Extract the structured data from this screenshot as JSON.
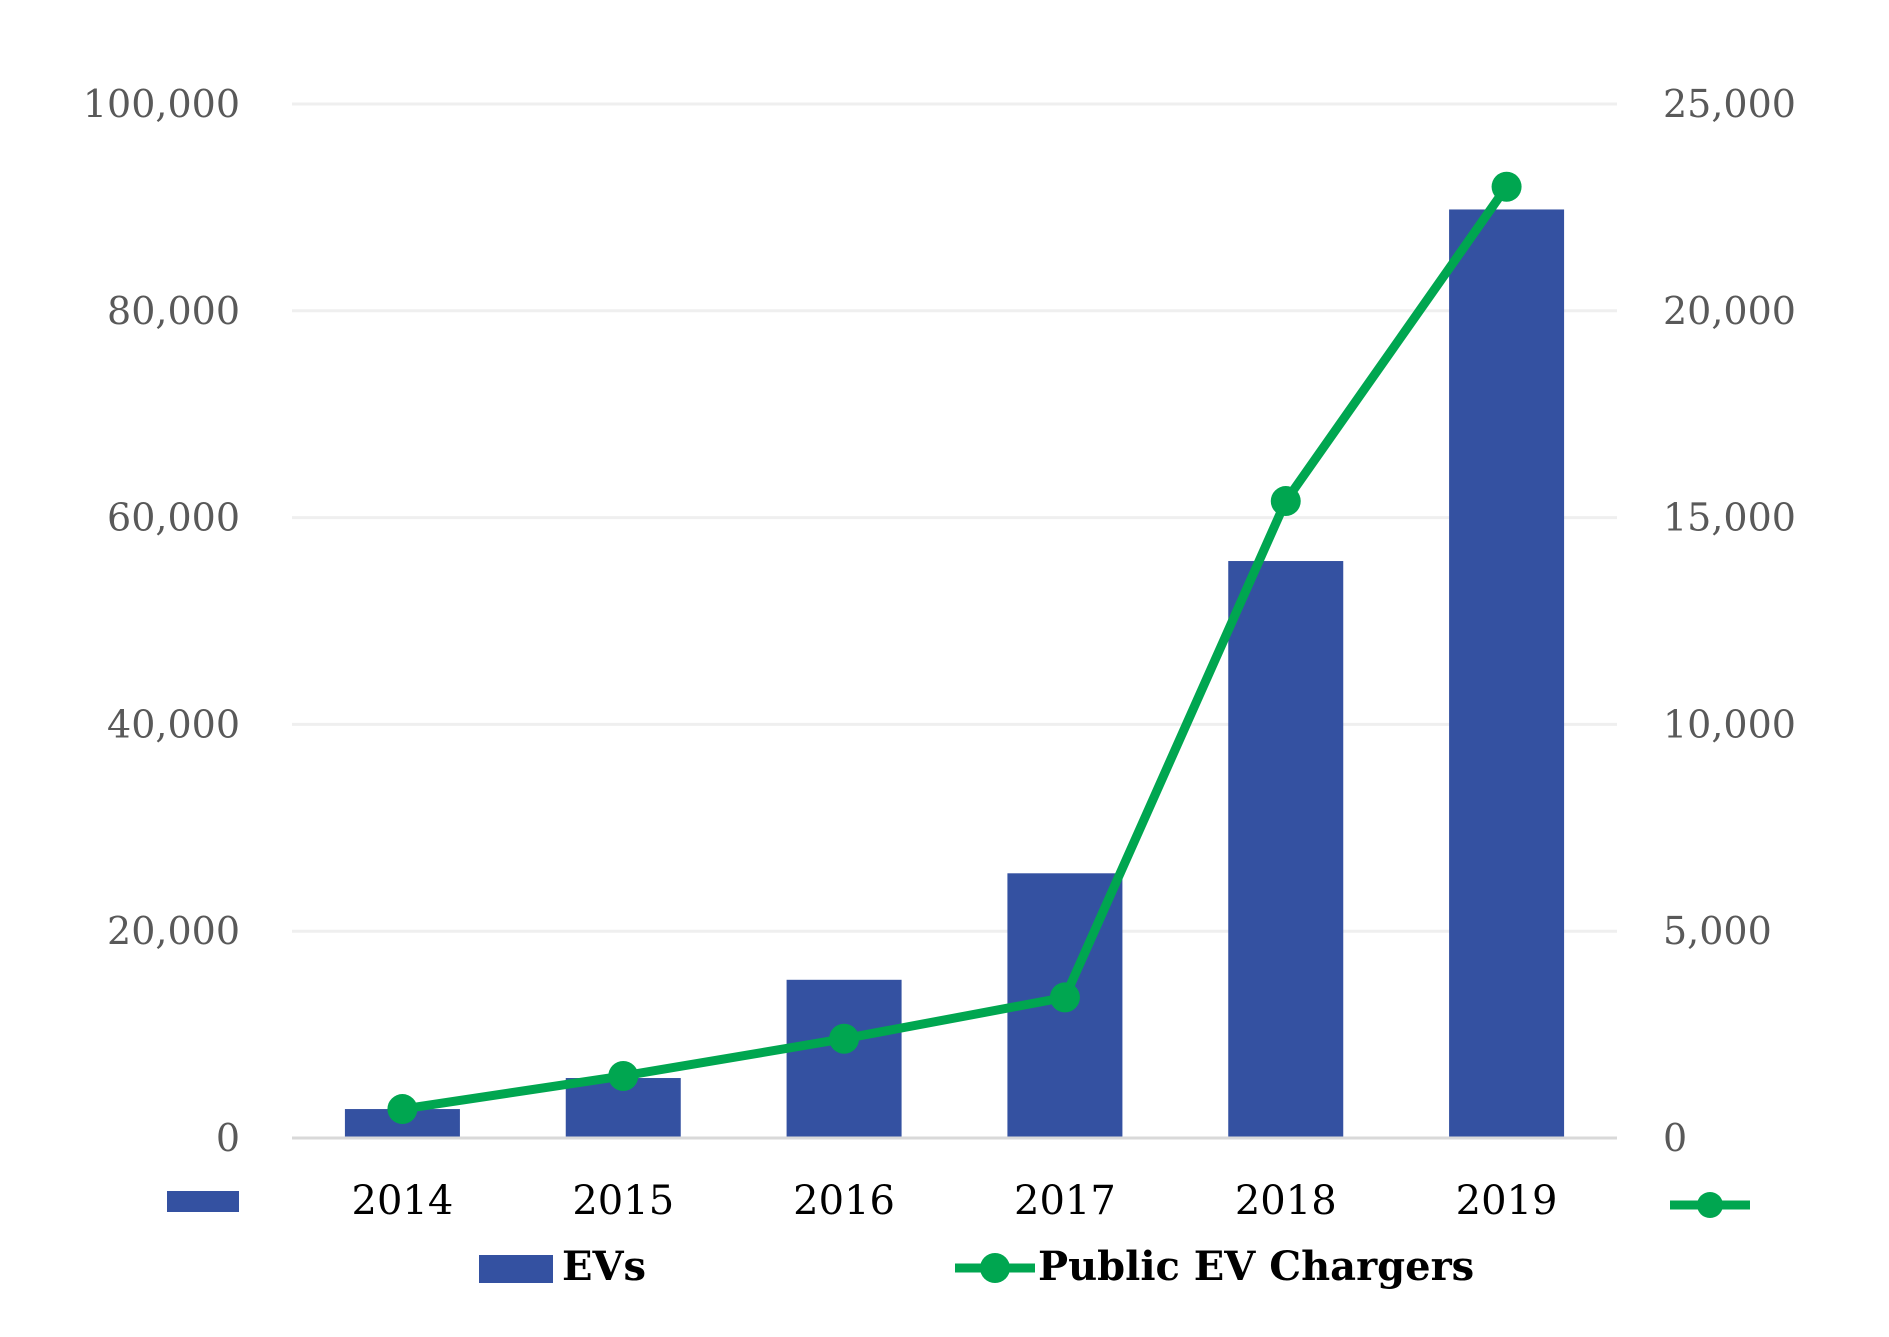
{
  "chart_data": {
    "type": "bar",
    "title": "",
    "categories": [
      "2014",
      "2015",
      "2016",
      "2017",
      "2018",
      "2019"
    ],
    "series": [
      {
        "name": "EVs",
        "type": "bar",
        "axis": "left",
        "color": "#3451A1",
        "values": [
          2800,
          5800,
          15300,
          25600,
          55800,
          89800
        ]
      },
      {
        "name": "Public EV Chargers",
        "type": "line",
        "axis": "right",
        "color": "#00A650",
        "values": [
          700,
          1500,
          2400,
          3400,
          15400,
          23000
        ]
      }
    ],
    "y_left": {
      "min": 0,
      "max": 100000,
      "ticks": [
        "0",
        "20,000",
        "40,000",
        "60,000",
        "80,000",
        "100,000"
      ]
    },
    "y_right": {
      "min": 0,
      "max": 25000,
      "ticks": [
        "0",
        "5,000",
        "10,000",
        "15,000",
        "20,000",
        "25,000"
      ]
    },
    "xlabel": "",
    "ylabel": "",
    "grid": true,
    "legend_position": "bottom"
  }
}
